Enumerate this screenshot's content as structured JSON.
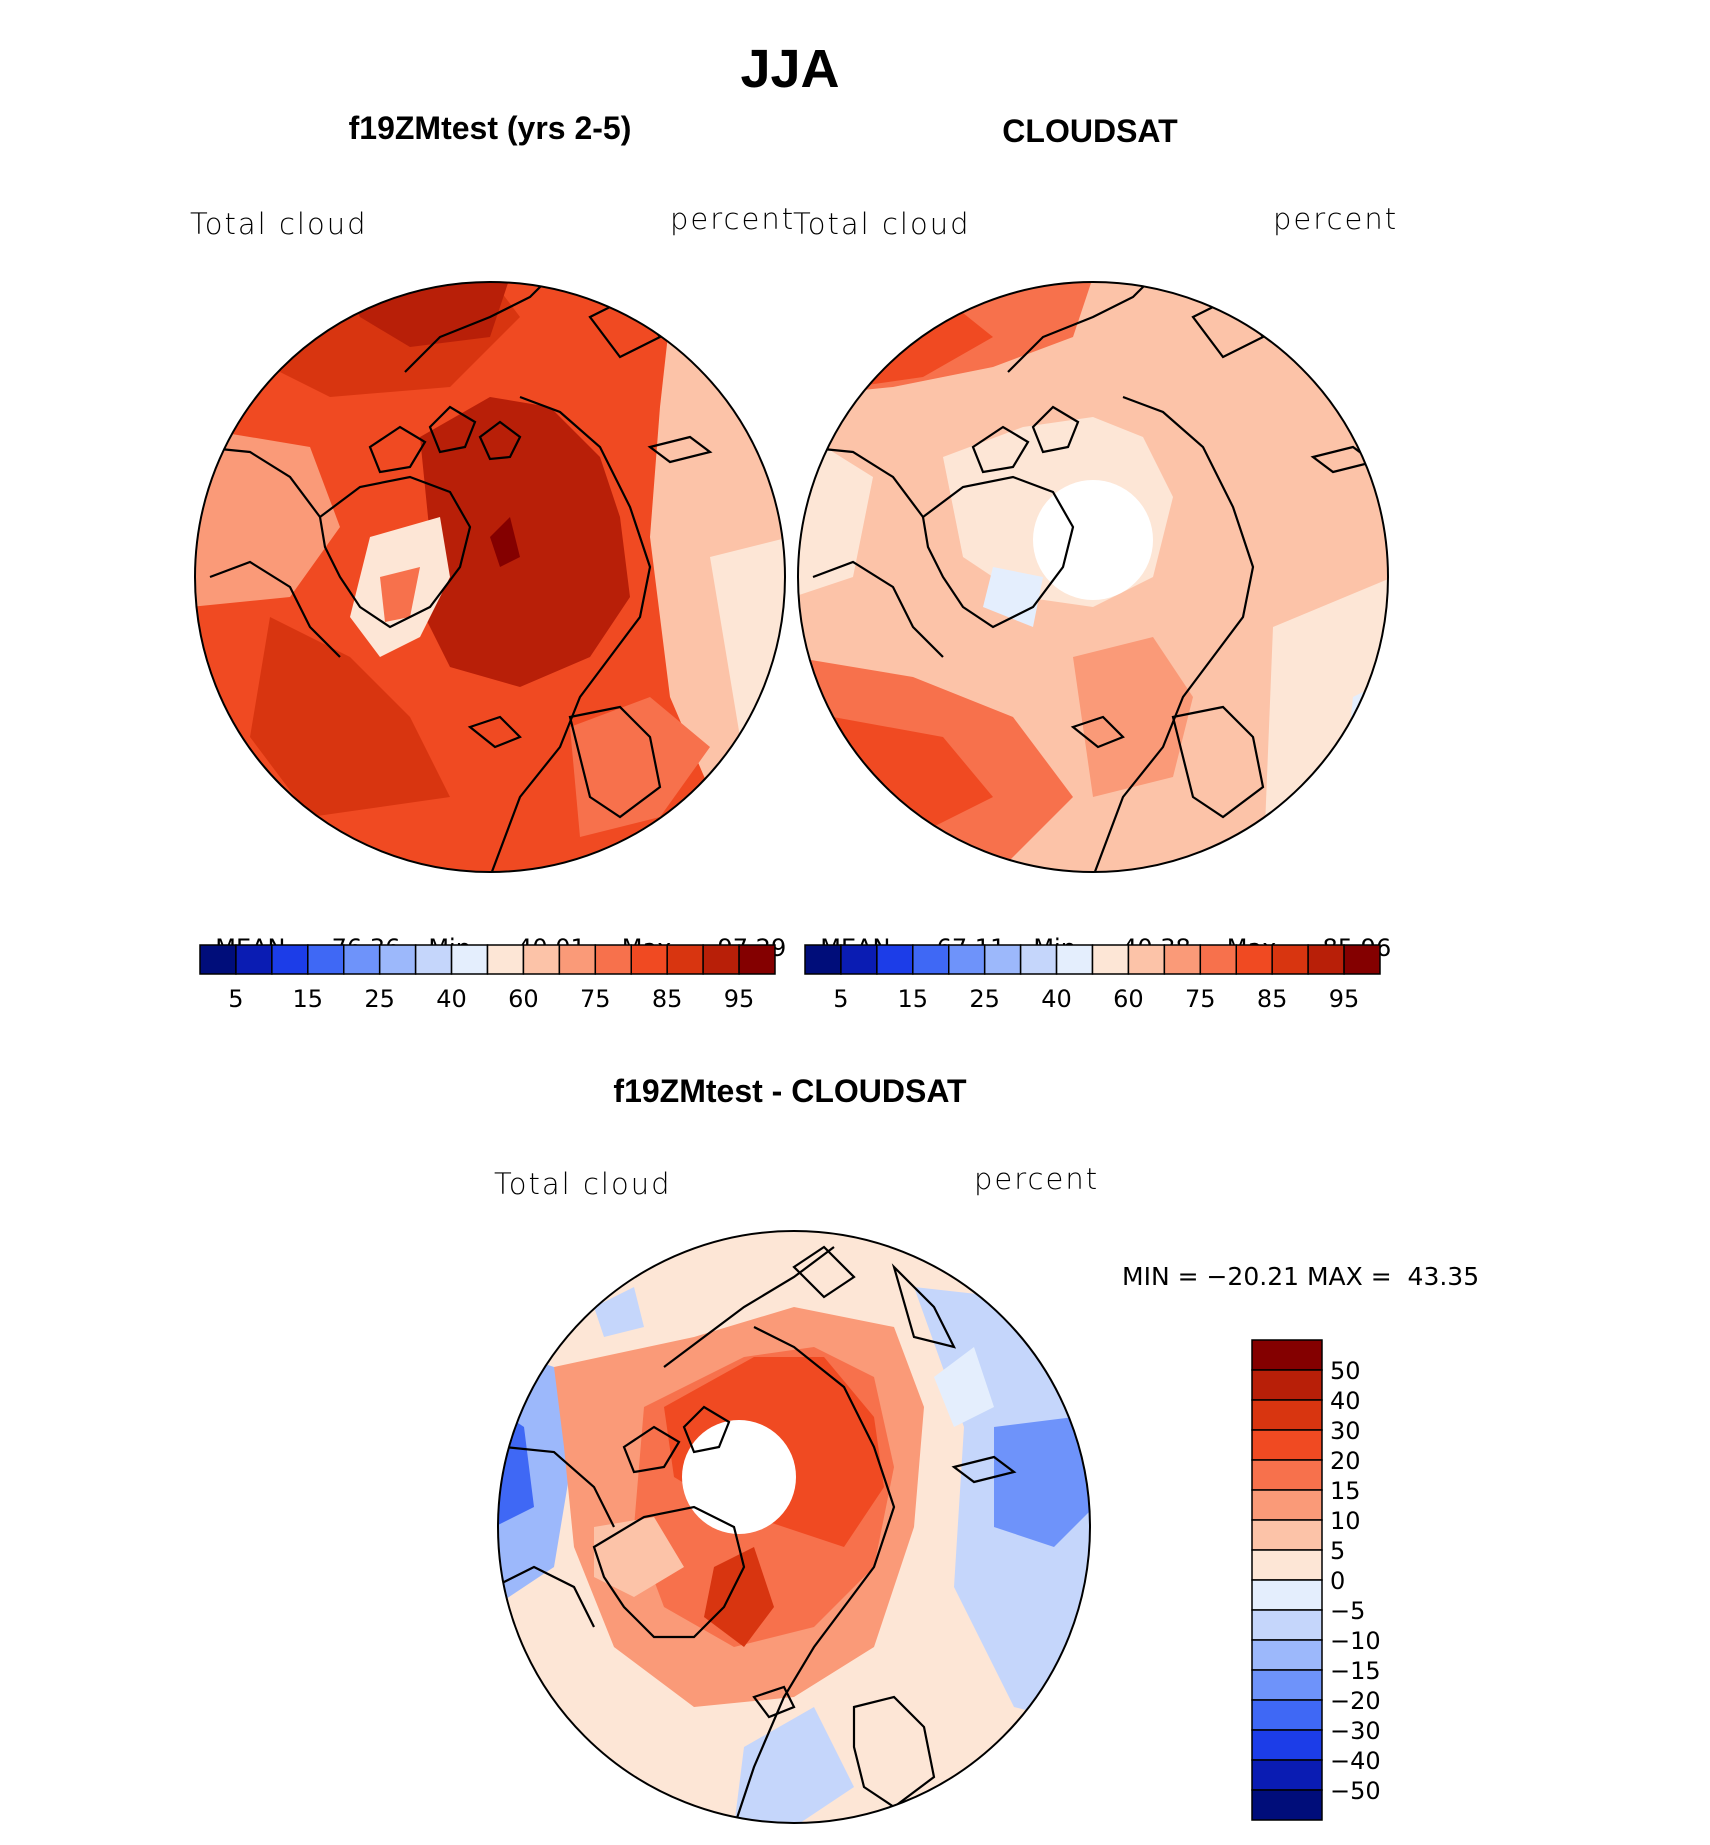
{
  "title": "JJA",
  "panels": [
    {
      "title": "f19ZMtest (yrs 2-5)",
      "left_label": "Total cloud",
      "right_label": "percent",
      "stats": {
        "mean_label": "MEAN=",
        "mean": "76.36",
        "min_label": "Min=",
        "min": "40.01",
        "max_label": "Max=",
        "max": "97.29"
      }
    },
    {
      "title": "CLOUDSAT",
      "left_label": "Total cloud",
      "right_label": "percent",
      "stats": {
        "mean_label": "MEAN=",
        "mean": "67.11",
        "min_label": "Min=",
        "min": "40.38",
        "max_label": "Max=",
        "max": "85.96"
      }
    }
  ],
  "diff_panel": {
    "title": "f19ZMtest - CLOUDSAT",
    "left_label": "Total cloud",
    "right_label": "percent",
    "minmax_text": "MIN = −20.21 MAX =  43.35"
  },
  "colorbar_top": {
    "colors": [
      "#000d7a",
      "#0a1cb3",
      "#1c3de8",
      "#3f68f5",
      "#6e93fa",
      "#9cb8fb",
      "#c5d6fb",
      "#e4eefd",
      "#fde6d6",
      "#fcc3a8",
      "#fa9a78",
      "#f7714c",
      "#f04a22",
      "#d83510",
      "#b81f08",
      "#840000"
    ],
    "tick_labels": [
      "5",
      "15",
      "25",
      "40",
      "60",
      "75",
      "85",
      "95"
    ]
  },
  "colorbar_diff": {
    "colors_top_to_bottom": [
      "#840000",
      "#b81f08",
      "#d83510",
      "#f04a22",
      "#f7714c",
      "#fa9a78",
      "#fcc3a8",
      "#fde6d6",
      "#e4eefd",
      "#c5d6fb",
      "#9cb8fb",
      "#6e93fa",
      "#3f68f5",
      "#1c3de8",
      "#0a1cb3",
      "#000d7a"
    ],
    "tick_labels": [
      "50",
      "40",
      "30",
      "20",
      "15",
      "10",
      "5",
      "0",
      "−5",
      "−10",
      "−15",
      "−20",
      "−30",
      "−40",
      "−50"
    ]
  },
  "maps": [
    {
      "name": "model-map",
      "base_color": "#f04a22"
    },
    {
      "name": "cloudsat-map",
      "base_color": "#fcc3a8"
    },
    {
      "name": "difference-map",
      "base_color": "#fde6d6"
    }
  ]
}
